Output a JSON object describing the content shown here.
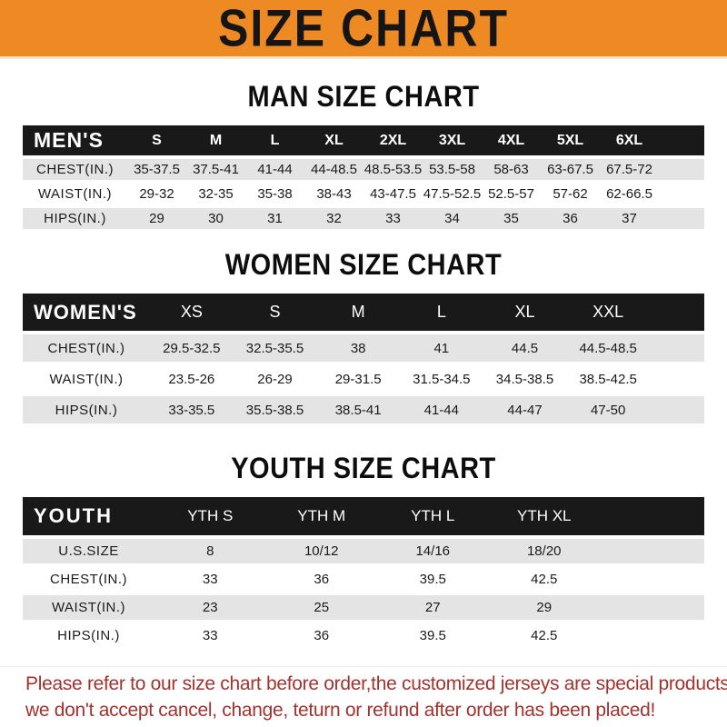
{
  "banner": {
    "title": "SIZE CHART"
  },
  "colors": {
    "banner-bg": "#ee8a24",
    "banner-edge": "#f4e6c4",
    "title-color": "#151515",
    "bar-bg": "#191919",
    "stripe-bg": "#e4e4e4",
    "note-red": "#a2332e"
  },
  "tables": {
    "men": {
      "heading": "MAN SIZE CHART",
      "header_label": "MEN'S",
      "sizes": [
        "S",
        "M",
        "L",
        "XL",
        "2XL",
        "3XL",
        "4XL",
        "5XL",
        "6XL"
      ],
      "rows": [
        {
          "label": "CHEST(IN.)",
          "values": [
            "35-37.5",
            "37.5-41",
            "41-44",
            "44-48.5",
            "48.5-53.5",
            "53.5-58",
            "58-63",
            "63-67.5",
            "67.5-72"
          ]
        },
        {
          "label": "WAIST(IN.)",
          "values": [
            "29-32",
            "32-35",
            "35-38",
            "38-43",
            "43-47.5",
            "47.5-52.5",
            "52.5-57",
            "57-62",
            "62-66.5"
          ]
        },
        {
          "label": "HIPS(IN.)",
          "values": [
            "29",
            "30",
            "31",
            "32",
            "33",
            "34",
            "35",
            "36",
            "37"
          ]
        }
      ]
    },
    "women": {
      "heading": "WOMEN SIZE CHART",
      "header_label": "WOMEN'S",
      "sizes": [
        "XS",
        "S",
        "M",
        "L",
        "XL",
        "XXL"
      ],
      "rows": [
        {
          "label": "CHEST(IN.)",
          "values": [
            "29.5-32.5",
            "32.5-35.5",
            "38",
            "41",
            "44.5",
            "44.5-48.5"
          ]
        },
        {
          "label": "WAIST(IN.)",
          "values": [
            "23.5-26",
            "26-29",
            "29-31.5",
            "31.5-34.5",
            "34.5-38.5",
            "38.5-42.5"
          ]
        },
        {
          "label": "HIPS(IN.)",
          "values": [
            "33-35.5",
            "35.5-38.5",
            "38.5-41",
            "41-44",
            "44-47",
            "47-50"
          ]
        }
      ]
    },
    "youth": {
      "heading": "YOUTH SIZE CHART",
      "header_label": "YOUTH",
      "sizes": [
        "YTH S",
        "YTH M",
        "YTH L",
        "YTH XL"
      ],
      "rows": [
        {
          "label": "U.S.SIZE",
          "values": [
            "8",
            "10/12",
            "14/16",
            "18/20"
          ]
        },
        {
          "label": "CHEST(IN.)",
          "values": [
            "33",
            "36",
            "39.5",
            "42.5"
          ]
        },
        {
          "label": "WAIST(IN.)",
          "values": [
            "23",
            "25",
            "27",
            "29"
          ]
        },
        {
          "label": "HIPS(IN.)",
          "values": [
            "33",
            "36",
            "39.5",
            "42.5"
          ]
        }
      ]
    }
  },
  "footer": {
    "line1": "Please refer to our size chart before order,the customized jerseys are special products,",
    "line2": "we don't accept cancel, change, teturn or refund after order has been placed!"
  }
}
